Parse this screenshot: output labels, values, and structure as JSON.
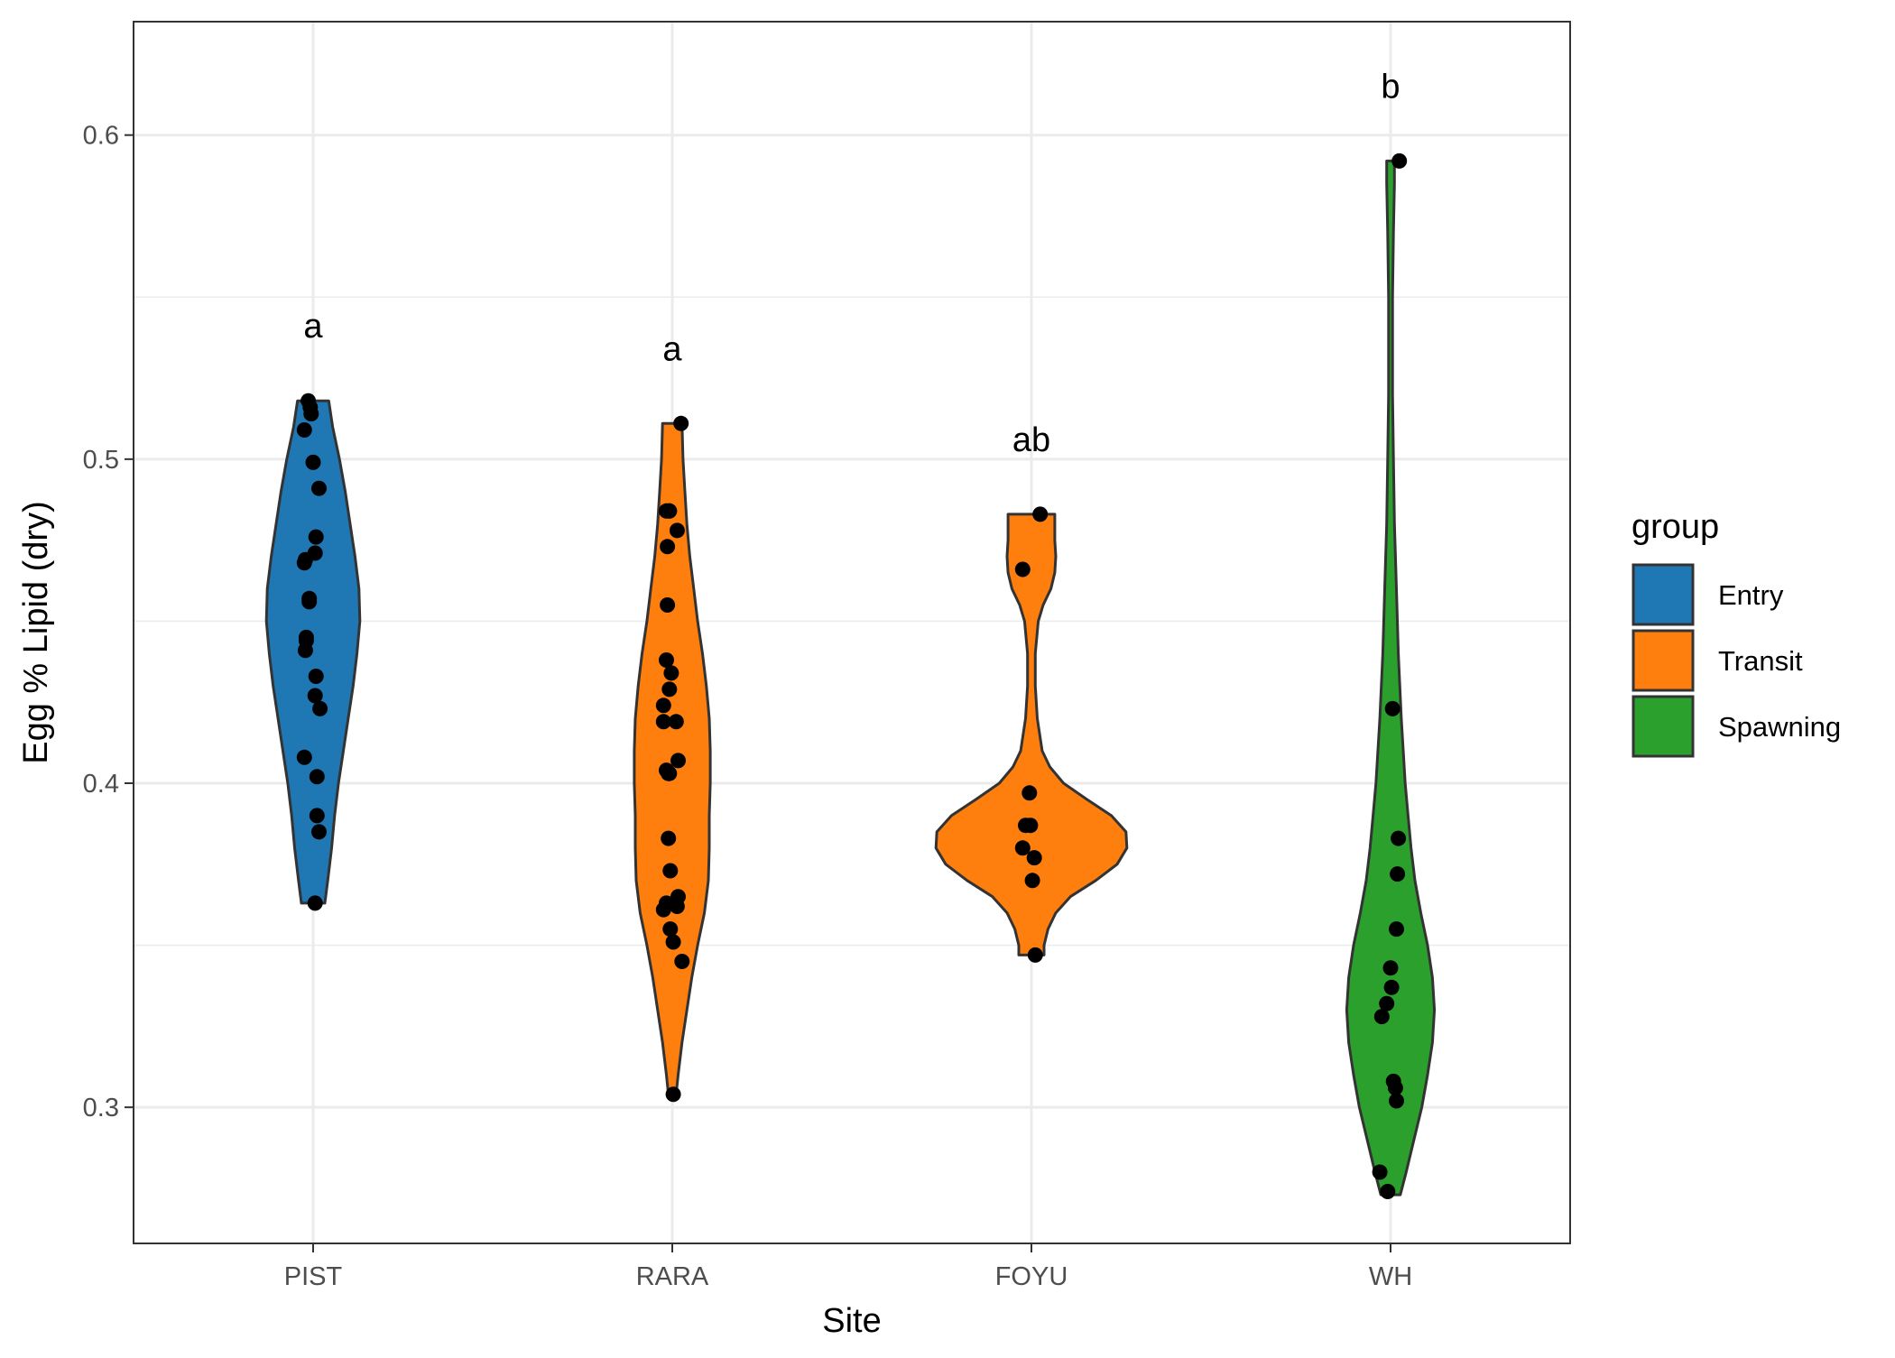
{
  "chart_data": {
    "type": "violin",
    "xlabel": "Site",
    "ylabel": "Egg % Lipid (dry)",
    "categories": [
      "PIST",
      "RARA",
      "FOYU",
      "WH"
    ],
    "ylim": [
      0.258,
      0.635
    ],
    "yticks": [
      0.3,
      0.4,
      0.5,
      0.6
    ],
    "ytick_labels": [
      "0.3",
      "0.4",
      "0.5",
      "0.6"
    ],
    "grid": true,
    "legend": {
      "title": "group",
      "position": "right",
      "entries": [
        {
          "name": "Entry",
          "color": "#1f77b4"
        },
        {
          "name": "Transit",
          "color": "#ff7f0e"
        },
        {
          "name": "Spawning",
          "color": "#2ca02c"
        }
      ]
    },
    "series": [
      {
        "category": "PIST",
        "group": "Entry",
        "color": "#1f77b4",
        "letter": "a",
        "ymin": 0.363,
        "ymax": 0.518,
        "profile": [
          [
            0.363,
            0.012
          ],
          [
            0.37,
            0.015
          ],
          [
            0.38,
            0.019
          ],
          [
            0.39,
            0.022
          ],
          [
            0.4,
            0.026
          ],
          [
            0.41,
            0.031
          ],
          [
            0.42,
            0.036
          ],
          [
            0.43,
            0.041
          ],
          [
            0.44,
            0.045
          ],
          [
            0.45,
            0.048
          ],
          [
            0.46,
            0.047
          ],
          [
            0.47,
            0.043
          ],
          [
            0.48,
            0.038
          ],
          [
            0.49,
            0.033
          ],
          [
            0.5,
            0.027
          ],
          [
            0.51,
            0.02
          ],
          [
            0.518,
            0.016
          ]
        ],
        "points": [
          [
            0.518,
            -0.005
          ],
          [
            0.516,
            -0.003
          ],
          [
            0.514,
            -0.002
          ],
          [
            0.509,
            -0.009
          ],
          [
            0.499,
            0.0
          ],
          [
            0.491,
            0.006
          ],
          [
            0.476,
            0.003
          ],
          [
            0.471,
            0.002
          ],
          [
            0.469,
            -0.008
          ],
          [
            0.468,
            -0.009
          ],
          [
            0.457,
            -0.004
          ],
          [
            0.456,
            -0.004
          ],
          [
            0.445,
            -0.007
          ],
          [
            0.444,
            -0.007
          ],
          [
            0.441,
            -0.008
          ],
          [
            0.433,
            0.003
          ],
          [
            0.427,
            0.002
          ],
          [
            0.423,
            0.007
          ],
          [
            0.408,
            -0.009
          ],
          [
            0.402,
            0.004
          ],
          [
            0.39,
            0.004
          ],
          [
            0.385,
            0.006
          ],
          [
            0.363,
            0.002
          ]
        ]
      },
      {
        "category": "RARA",
        "group": "Transit",
        "color": "#ff7f0e",
        "letter": "a",
        "ymin": 0.304,
        "ymax": 0.511,
        "profile": [
          [
            0.304,
            0.004
          ],
          [
            0.31,
            0.006
          ],
          [
            0.32,
            0.01
          ],
          [
            0.33,
            0.015
          ],
          [
            0.34,
            0.02
          ],
          [
            0.35,
            0.026
          ],
          [
            0.36,
            0.033
          ],
          [
            0.37,
            0.037
          ],
          [
            0.38,
            0.038
          ],
          [
            0.39,
            0.038
          ],
          [
            0.4,
            0.039
          ],
          [
            0.41,
            0.039
          ],
          [
            0.42,
            0.038
          ],
          [
            0.43,
            0.035
          ],
          [
            0.44,
            0.031
          ],
          [
            0.45,
            0.026
          ],
          [
            0.46,
            0.022
          ],
          [
            0.47,
            0.018
          ],
          [
            0.48,
            0.015
          ],
          [
            0.49,
            0.013
          ],
          [
            0.5,
            0.011
          ],
          [
            0.511,
            0.01
          ]
        ],
        "points": [
          [
            0.511,
            0.009
          ],
          [
            0.484,
            -0.006
          ],
          [
            0.484,
            -0.003
          ],
          [
            0.484,
            -0.003
          ],
          [
            0.478,
            0.005
          ],
          [
            0.473,
            -0.005
          ],
          [
            0.455,
            -0.005
          ],
          [
            0.438,
            -0.006
          ],
          [
            0.434,
            -0.001
          ],
          [
            0.429,
            -0.003
          ],
          [
            0.424,
            -0.009
          ],
          [
            0.419,
            0.004
          ],
          [
            0.419,
            -0.009
          ],
          [
            0.407,
            0.006
          ],
          [
            0.404,
            -0.006
          ],
          [
            0.403,
            -0.004
          ],
          [
            0.403,
            -0.003
          ],
          [
            0.383,
            -0.004
          ],
          [
            0.373,
            -0.002
          ],
          [
            0.365,
            0.006
          ],
          [
            0.363,
            -0.006
          ],
          [
            0.362,
            0.005
          ],
          [
            0.361,
            -0.009
          ],
          [
            0.355,
            -0.002
          ],
          [
            0.351,
            0.001
          ],
          [
            0.345,
            0.01
          ],
          [
            0.304,
            0.001
          ]
        ]
      },
      {
        "category": "FOYU",
        "group": "Transit",
        "color": "#ff7f0e",
        "letter": "ab",
        "ymin": 0.347,
        "ymax": 0.483,
        "profile": [
          [
            0.347,
            0.013
          ],
          [
            0.35,
            0.013
          ],
          [
            0.355,
            0.017
          ],
          [
            0.36,
            0.025
          ],
          [
            0.365,
            0.04
          ],
          [
            0.37,
            0.066
          ],
          [
            0.375,
            0.088
          ],
          [
            0.38,
            0.098
          ],
          [
            0.385,
            0.097
          ],
          [
            0.39,
            0.082
          ],
          [
            0.395,
            0.057
          ],
          [
            0.4,
            0.033
          ],
          [
            0.405,
            0.019
          ],
          [
            0.41,
            0.011
          ],
          [
            0.42,
            0.006
          ],
          [
            0.43,
            0.004
          ],
          [
            0.44,
            0.004
          ],
          [
            0.45,
            0.007
          ],
          [
            0.455,
            0.012
          ],
          [
            0.46,
            0.02
          ],
          [
            0.465,
            0.024
          ],
          [
            0.47,
            0.025
          ],
          [
            0.475,
            0.024
          ],
          [
            0.483,
            0.024
          ]
        ],
        "points": [
          [
            0.483,
            0.009
          ],
          [
            0.466,
            -0.009
          ],
          [
            0.397,
            -0.002
          ],
          [
            0.387,
            -0.006
          ],
          [
            0.387,
            -0.001
          ],
          [
            0.38,
            -0.009
          ],
          [
            0.377,
            0.003
          ],
          [
            0.37,
            0.001
          ],
          [
            0.347,
            0.004
          ]
        ]
      },
      {
        "category": "WH",
        "group": "Spawning",
        "color": "#2ca02c",
        "letter": "b",
        "ymin": 0.273,
        "ymax": 0.592,
        "profile": [
          [
            0.273,
            0.01
          ],
          [
            0.28,
            0.016
          ],
          [
            0.29,
            0.024
          ],
          [
            0.3,
            0.032
          ],
          [
            0.31,
            0.038
          ],
          [
            0.32,
            0.043
          ],
          [
            0.33,
            0.045
          ],
          [
            0.34,
            0.043
          ],
          [
            0.35,
            0.038
          ],
          [
            0.36,
            0.031
          ],
          [
            0.37,
            0.025
          ],
          [
            0.38,
            0.021
          ],
          [
            0.39,
            0.018
          ],
          [
            0.4,
            0.015
          ],
          [
            0.42,
            0.011
          ],
          [
            0.44,
            0.008
          ],
          [
            0.46,
            0.006
          ],
          [
            0.48,
            0.004
          ],
          [
            0.5,
            0.003
          ],
          [
            0.52,
            0.002
          ],
          [
            0.55,
            0.002
          ],
          [
            0.57,
            0.003
          ],
          [
            0.585,
            0.004
          ],
          [
            0.592,
            0.004
          ]
        ],
        "points": [
          [
            0.592,
            0.009
          ],
          [
            0.423,
            0.002
          ],
          [
            0.383,
            0.008
          ],
          [
            0.372,
            0.007
          ],
          [
            0.355,
            0.006
          ],
          [
            0.343,
            0.0
          ],
          [
            0.337,
            0.001
          ],
          [
            0.332,
            -0.004
          ],
          [
            0.328,
            -0.009
          ],
          [
            0.308,
            0.003
          ],
          [
            0.306,
            0.005
          ],
          [
            0.302,
            0.006
          ],
          [
            0.28,
            -0.011
          ],
          [
            0.274,
            -0.003
          ]
        ]
      }
    ]
  }
}
